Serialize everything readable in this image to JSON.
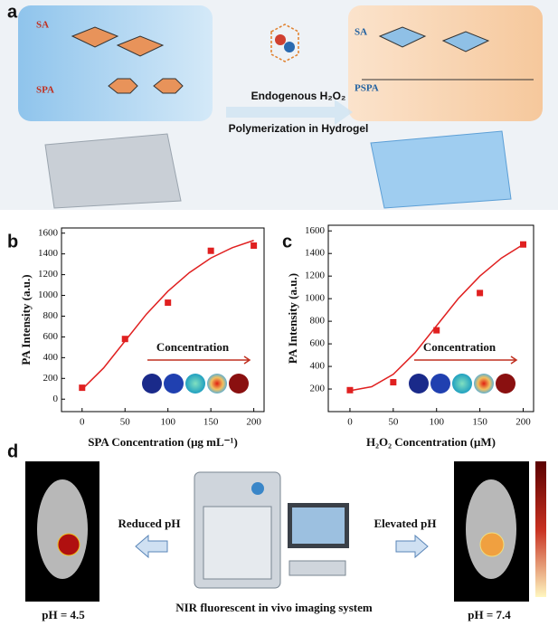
{
  "panel_a": {
    "label": "a",
    "left_sa": "SA",
    "left_spa": "SPA",
    "right_sa": "SA",
    "right_pspa": "PSPA",
    "arrow_top": "Endogenous H₂O₂",
    "arrow_bottom": "Polymerization in Hydrogel"
  },
  "chart_data": [
    {
      "type": "scatter",
      "label": "b",
      "xlabel": "SPA Concentration (μg mL⁻¹)",
      "ylabel": "PA Intensity (a.u.)",
      "annotation": "Concentration",
      "xlim": [
        -24,
        212
      ],
      "ylim": [
        -120,
        1650
      ],
      "xticks": [
        0,
        50,
        100,
        150,
        200
      ],
      "yticks": [
        0,
        200,
        400,
        600,
        800,
        1000,
        1200,
        1400,
        1600
      ],
      "series": [
        {
          "style": "markers",
          "color": "#e02020",
          "x": [
            0,
            50,
            100,
            150,
            200
          ],
          "values": [
            110,
            580,
            930,
            1430,
            1480
          ]
        },
        {
          "style": "line",
          "color": "#e02020",
          "x": [
            0,
            25,
            50,
            75,
            100,
            125,
            150,
            175,
            200
          ],
          "values": [
            95,
            300,
            560,
            820,
            1040,
            1220,
            1360,
            1460,
            1530
          ]
        }
      ]
    },
    {
      "type": "scatter",
      "label": "c",
      "xlabel": "H₂O₂ Concentration (μM)",
      "ylabel": "PA Intensity (a.u.)",
      "annotation": "Concentration",
      "xlim": [
        -25,
        212
      ],
      "ylim": [
        0,
        1650
      ],
      "xticks": [
        0,
        50,
        100,
        150,
        200
      ],
      "yticks": [
        200,
        400,
        600,
        800,
        1000,
        1200,
        1400,
        1600
      ],
      "series": [
        {
          "style": "markers",
          "color": "#e02020",
          "x": [
            0,
            50,
            100,
            150,
            200
          ],
          "values": [
            190,
            260,
            720,
            1050,
            1480
          ]
        },
        {
          "style": "line",
          "color": "#e02020",
          "x": [
            0,
            25,
            50,
            75,
            100,
            125,
            150,
            175,
            200
          ],
          "values": [
            185,
            220,
            330,
            520,
            760,
            1000,
            1200,
            1360,
            1480
          ]
        }
      ]
    }
  ],
  "panel_d": {
    "label": "d",
    "left_ph": "pH = 4.5",
    "right_ph": "pH = 7.4",
    "left_arrow": "Reduced pH",
    "right_arrow": "Elevated pH",
    "caption": "NIR fluorescent in vivo imaging system"
  }
}
